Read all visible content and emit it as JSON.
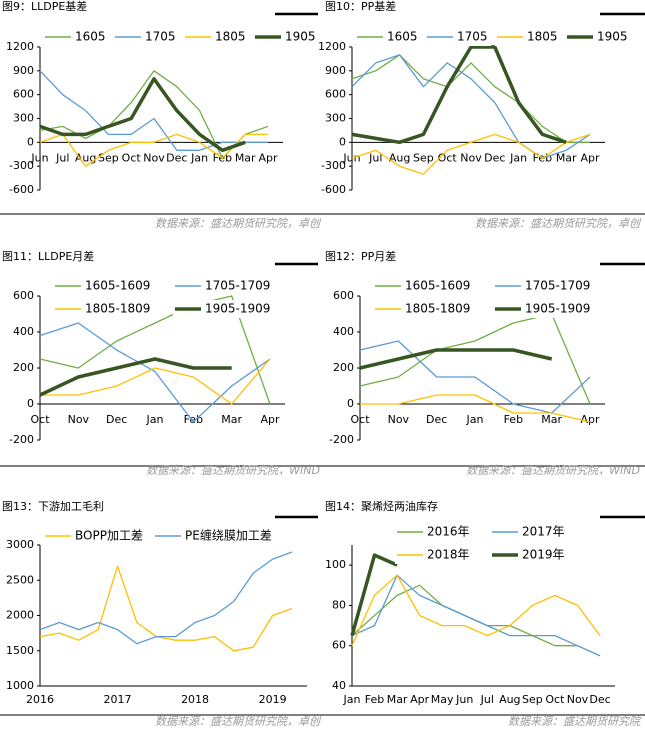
{
  "chart_data": [
    {
      "type": "line",
      "title": "图9：LLDPE基差",
      "source": "数据来源：盛达期货研究院，卓创",
      "categories": [
        "Jun",
        "Jul",
        "Aug",
        "Sep",
        "Oct",
        "Nov",
        "Dec",
        "Jan",
        "Feb",
        "Mar",
        "Apr"
      ],
      "ylim": [
        -600,
        1200
      ],
      "yticks": [
        -600,
        -300,
        0,
        300,
        600,
        900,
        1200
      ],
      "legend": "top",
      "series": [
        {
          "name": "1605",
          "color": "#70ad47",
          "values": [
            150,
            200,
            50,
            200,
            500,
            900,
            700,
            400,
            -200,
            100,
            200
          ]
        },
        {
          "name": "1705",
          "color": "#5b9bd5",
          "values": [
            900,
            600,
            400,
            100,
            100,
            300,
            -100,
            -100,
            0,
            0,
            0
          ]
        },
        {
          "name": "1805",
          "color": "#ffc000",
          "values": [
            0,
            100,
            -300,
            -100,
            0,
            0,
            100,
            0,
            -200,
            100,
            100
          ]
        },
        {
          "name": "1905",
          "color": "#375623",
          "bold": true,
          "values": [
            200,
            100,
            100,
            200,
            300,
            800,
            400,
            100,
            -100,
            0,
            null
          ]
        }
      ]
    },
    {
      "type": "line",
      "title": "图10：PP基差",
      "source": "数据来源：盛达期货研究院，卓创",
      "categories": [
        "Jun",
        "Jul",
        "Aug",
        "Sep",
        "Oct",
        "Nov",
        "Dec",
        "Jan",
        "Feb",
        "Mar",
        "Apr"
      ],
      "ylim": [
        -600,
        1200
      ],
      "yticks": [
        -600,
        -300,
        0,
        300,
        600,
        900,
        1200
      ],
      "legend": "top",
      "series": [
        {
          "name": "1605",
          "color": "#70ad47",
          "values": [
            800,
            900,
            1100,
            800,
            700,
            1000,
            700,
            500,
            200,
            0,
            0
          ]
        },
        {
          "name": "1705",
          "color": "#5b9bd5",
          "values": [
            700,
            1000,
            1100,
            700,
            1000,
            800,
            500,
            0,
            -200,
            -100,
            100
          ]
        },
        {
          "name": "1805",
          "color": "#ffc000",
          "values": [
            -200,
            -100,
            -300,
            -400,
            -100,
            0,
            100,
            0,
            -200,
            0,
            100
          ]
        },
        {
          "name": "1905",
          "color": "#375623",
          "bold": true,
          "values": [
            100,
            50,
            0,
            100,
            700,
            1200,
            1200,
            500,
            100,
            0,
            null
          ]
        }
      ]
    },
    {
      "type": "line",
      "title": "图11：LLDPE月差",
      "source": "数据来源：盛达期货研究院，WIND",
      "categories": [
        "Oct",
        "Nov",
        "Dec",
        "Jan",
        "Feb",
        "Mar",
        "Apr"
      ],
      "ylim": [
        -200,
        600
      ],
      "yticks": [
        -200,
        0,
        200,
        400,
        600
      ],
      "legend": "grid",
      "series": [
        {
          "name": "1605-1609",
          "color": "#70ad47",
          "values": [
            250,
            200,
            350,
            450,
            550,
            600,
            0
          ]
        },
        {
          "name": "1705-1709",
          "color": "#5b9bd5",
          "values": [
            380,
            450,
            300,
            180,
            -100,
            100,
            250
          ]
        },
        {
          "name": "1805-1809",
          "color": "#ffc000",
          "values": [
            50,
            50,
            100,
            200,
            150,
            0,
            250
          ]
        },
        {
          "name": "1905-1909",
          "color": "#375623",
          "bold": true,
          "values": [
            50,
            150,
            200,
            250,
            200,
            200,
            null
          ]
        }
      ]
    },
    {
      "type": "line",
      "title": "图12：PP月差",
      "source": "数据来源：盛达期货研究院，WIND",
      "categories": [
        "Oct",
        "Nov",
        "Dec",
        "Jan",
        "Feb",
        "Mar",
        "Apr"
      ],
      "ylim": [
        -200,
        600
      ],
      "yticks": [
        -200,
        0,
        200,
        400,
        600
      ],
      "legend": "grid",
      "series": [
        {
          "name": "1605-1609",
          "color": "#70ad47",
          "values": [
            100,
            150,
            300,
            350,
            450,
            500,
            0
          ]
        },
        {
          "name": "1705-1709",
          "color": "#5b9bd5",
          "values": [
            300,
            350,
            150,
            150,
            0,
            -50,
            150
          ]
        },
        {
          "name": "1805-1809",
          "color": "#ffc000",
          "values": [
            0,
            0,
            50,
            50,
            -50,
            -50,
            -100
          ]
        },
        {
          "name": "1905-1909",
          "color": "#375623",
          "bold": true,
          "values": [
            200,
            250,
            300,
            300,
            300,
            250,
            null
          ]
        }
      ]
    },
    {
      "type": "line",
      "title": "图13：下游加工毛利",
      "source": "数据来源：盛达期货研究院，卓创",
      "categories": [
        "2016",
        null,
        null,
        null,
        "2017",
        null,
        null,
        null,
        "2018",
        null,
        null,
        null,
        "2019",
        null
      ],
      "ylim": [
        1000,
        3000
      ],
      "yticks": [
        1000,
        1500,
        2000,
        2500,
        3000
      ],
      "legend": "top",
      "series": [
        {
          "name": "BOPP加工差",
          "color": "#ffc000",
          "values": [
            1700,
            1750,
            1650,
            1800,
            2700,
            1900,
            1700,
            1650,
            1650,
            1700,
            1500,
            1550,
            2000,
            2100
          ]
        },
        {
          "name": "PE缠绕膜加工差",
          "color": "#5b9bd5",
          "values": [
            1800,
            1900,
            1800,
            1900,
            1800,
            1600,
            1700,
            1700,
            1900,
            2000,
            2200,
            2600,
            2800,
            2900
          ]
        }
      ]
    },
    {
      "type": "line",
      "title": "图14：聚烯烃两油库存",
      "source": "数据来源：盛达期货研究院",
      "categories": [
        "Jan",
        "Feb",
        "Mar",
        "Apr",
        "May",
        "Jun",
        "Jul",
        "Aug",
        "Sep",
        "Oct",
        "Nov",
        "Dec"
      ],
      "ylim": [
        40,
        110
      ],
      "yticks": [
        40,
        60,
        80,
        100
      ],
      "legend": "grid",
      "series": [
        {
          "name": "2016年",
          "color": "#70ad47",
          "values": [
            65,
            75,
            85,
            90,
            80,
            75,
            70,
            70,
            65,
            60,
            60,
            55
          ]
        },
        {
          "name": "2017年",
          "color": "#5b9bd5",
          "values": [
            65,
            70,
            95,
            85,
            80,
            75,
            70,
            65,
            65,
            65,
            60,
            55
          ]
        },
        {
          "name": "2018年",
          "color": "#ffc000",
          "values": [
            60,
            85,
            95,
            75,
            70,
            70,
            65,
            70,
            80,
            85,
            80,
            65
          ]
        },
        {
          "name": "2019年",
          "color": "#375623",
          "bold": true,
          "values": [
            65,
            105,
            100,
            null,
            null,
            null,
            null,
            null,
            null,
            null,
            null,
            null
          ]
        }
      ]
    }
  ]
}
